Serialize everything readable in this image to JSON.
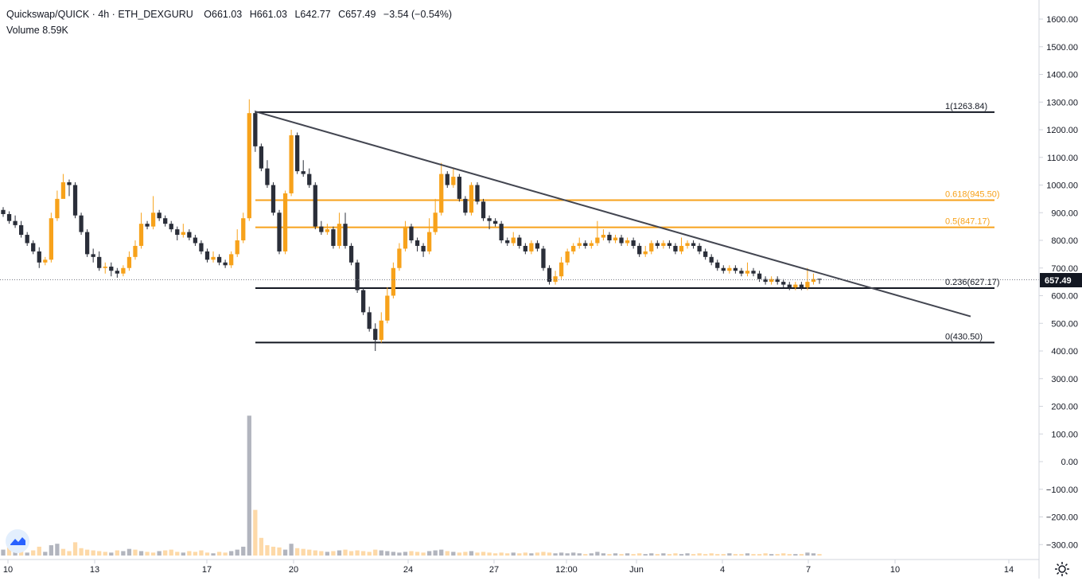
{
  "header": {
    "symbol": "Quickswap/QUICK · 4h · ETH_DEXGURU",
    "ohlc": {
      "open_label": "O",
      "open": "661.03",
      "high_label": "H",
      "high": "661.03",
      "low_label": "L",
      "low": "642.77",
      "close_label": "C",
      "close": "657.49",
      "change": "−3.54 (−0.54%)"
    },
    "volume_label": "Volume",
    "volume_value": "8.59K"
  },
  "price_tag": "657.49",
  "colors": {
    "up": "#f7a21b",
    "down": "#2a2e39",
    "fib_black": "#131722",
    "fib_orange": "#f7a21b",
    "trendline": "#434651",
    "volume_up": "#fdd9a8",
    "volume_down": "#b2b5be",
    "grid": "#e0e3eb"
  },
  "chart_data": {
    "type": "candlestick",
    "y_ticks": [
      "1600.00",
      "1500.00",
      "1400.00",
      "1300.00",
      "1200.00",
      "1100.00",
      "1000.00",
      "900.00",
      "800.00",
      "700.00",
      "600.00",
      "500.00",
      "400.00",
      "300.00",
      "200.00",
      "100.00",
      "0.00",
      "−100.00",
      "−200.00",
      "−300.00"
    ],
    "y_range": [
      -330,
      1650
    ],
    "x_ticks": [
      "10",
      "13",
      "17",
      "20",
      "24",
      "27",
      "12:00",
      "Jun",
      "4",
      "7",
      "10",
      "14"
    ],
    "last_price": 657.49,
    "fib_levels": [
      {
        "label": "1(1263.84)",
        "value": 1263.84,
        "color": "black"
      },
      {
        "label": "0.618(945.50)",
        "value": 945.5,
        "color": "orange"
      },
      {
        "label": "0.5(847.17)",
        "value": 847.17,
        "color": "orange"
      },
      {
        "label": "0.236(627.17)",
        "value": 627.17,
        "color": "black"
      },
      {
        "label": "0(430.50)",
        "value": 430.5,
        "color": "black"
      }
    ],
    "trendline": {
      "from": {
        "x": 322,
        "price": 1265
      },
      "to": {
        "x": 1220,
        "price": 525
      }
    },
    "candles": [
      [
        910,
        895,
        920,
        885
      ],
      [
        895,
        870,
        905,
        860
      ],
      [
        870,
        855,
        890,
        845
      ],
      [
        855,
        820,
        870,
        810
      ],
      [
        820,
        790,
        830,
        780
      ],
      [
        790,
        760,
        800,
        750
      ],
      [
        760,
        720,
        775,
        700
      ],
      [
        720,
        730,
        740,
        710
      ],
      [
        730,
        880,
        900,
        720
      ],
      [
        880,
        950,
        980,
        870
      ],
      [
        950,
        1010,
        1040,
        1000
      ],
      [
        1010,
        1000,
        1020,
        960
      ],
      [
        1000,
        890,
        1010,
        880
      ],
      [
        890,
        830,
        900,
        820
      ],
      [
        830,
        750,
        840,
        740
      ],
      [
        750,
        740,
        770,
        720
      ],
      [
        740,
        700,
        760,
        690
      ],
      [
        700,
        705,
        720,
        680
      ],
      [
        705,
        690,
        720,
        670
      ],
      [
        690,
        680,
        700,
        665
      ],
      [
        680,
        700,
        710,
        670
      ],
      [
        700,
        740,
        760,
        690
      ],
      [
        740,
        780,
        800,
        730
      ],
      [
        780,
        860,
        900,
        770
      ],
      [
        860,
        850,
        870,
        840
      ],
      [
        850,
        900,
        960,
        840
      ],
      [
        900,
        880,
        910,
        870
      ],
      [
        880,
        860,
        890,
        850
      ],
      [
        860,
        840,
        870,
        830
      ],
      [
        840,
        820,
        850,
        800
      ],
      [
        820,
        830,
        860,
        810
      ],
      [
        830,
        810,
        840,
        800
      ],
      [
        810,
        790,
        820,
        780
      ],
      [
        790,
        760,
        800,
        750
      ],
      [
        760,
        730,
        770,
        720
      ],
      [
        730,
        740,
        760,
        720
      ],
      [
        740,
        720,
        750,
        710
      ],
      [
        720,
        710,
        730,
        700
      ],
      [
        710,
        750,
        760,
        700
      ],
      [
        750,
        800,
        840,
        740
      ],
      [
        800,
        880,
        900,
        790
      ],
      [
        880,
        1260,
        1310,
        870
      ],
      [
        1260,
        1140,
        1270,
        1120
      ],
      [
        1140,
        1060,
        1150,
        1050
      ],
      [
        1060,
        1000,
        1090,
        990
      ],
      [
        1000,
        900,
        1010,
        890
      ],
      [
        900,
        760,
        910,
        750
      ],
      [
        760,
        970,
        980,
        750
      ],
      [
        970,
        1180,
        1200,
        960
      ],
      [
        1180,
        1050,
        1190,
        1040
      ],
      [
        1050,
        1040,
        1090,
        1030
      ],
      [
        1040,
        1000,
        1060,
        990
      ],
      [
        1000,
        850,
        1010,
        840
      ],
      [
        850,
        830,
        870,
        820
      ],
      [
        830,
        840,
        860,
        820
      ],
      [
        840,
        780,
        850,
        770
      ],
      [
        780,
        860,
        900,
        770
      ],
      [
        860,
        780,
        900,
        770
      ],
      [
        780,
        720,
        790,
        710
      ],
      [
        720,
        620,
        730,
        610
      ],
      [
        620,
        540,
        630,
        530
      ],
      [
        540,
        480,
        560,
        470
      ],
      [
        480,
        440,
        500,
        400
      ],
      [
        440,
        510,
        540,
        430
      ],
      [
        510,
        600,
        630,
        500
      ],
      [
        600,
        700,
        720,
        590
      ],
      [
        700,
        770,
        790,
        690
      ],
      [
        770,
        850,
        870,
        760
      ],
      [
        850,
        800,
        860,
        790
      ],
      [
        800,
        780,
        810,
        760
      ],
      [
        780,
        760,
        790,
        740
      ],
      [
        760,
        830,
        880,
        750
      ],
      [
        830,
        900,
        950,
        820
      ],
      [
        900,
        1040,
        1080,
        890
      ],
      [
        1040,
        1000,
        1050,
        990
      ],
      [
        1000,
        1030,
        1060,
        990
      ],
      [
        1030,
        950,
        1040,
        940
      ],
      [
        950,
        900,
        960,
        890
      ],
      [
        900,
        1000,
        1010,
        890
      ],
      [
        1000,
        940,
        1010,
        930
      ],
      [
        940,
        880,
        950,
        870
      ],
      [
        880,
        870,
        890,
        840
      ],
      [
        870,
        860,
        880,
        850
      ],
      [
        860,
        800,
        870,
        790
      ],
      [
        800,
        790,
        810,
        780
      ],
      [
        790,
        810,
        830,
        780
      ],
      [
        810,
        780,
        820,
        770
      ],
      [
        780,
        760,
        790,
        750
      ],
      [
        760,
        790,
        800,
        750
      ],
      [
        790,
        770,
        800,
        760
      ],
      [
        770,
        700,
        780,
        690
      ],
      [
        700,
        650,
        710,
        640
      ],
      [
        650,
        670,
        690,
        640
      ],
      [
        670,
        720,
        740,
        660
      ],
      [
        720,
        760,
        770,
        710
      ],
      [
        760,
        780,
        790,
        750
      ],
      [
        780,
        790,
        810,
        770
      ],
      [
        790,
        780,
        800,
        770
      ],
      [
        780,
        790,
        800,
        770
      ],
      [
        790,
        810,
        870,
        780
      ],
      [
        810,
        820,
        840,
        800
      ],
      [
        820,
        800,
        830,
        790
      ],
      [
        800,
        810,
        820,
        790
      ],
      [
        810,
        790,
        820,
        780
      ],
      [
        790,
        800,
        810,
        780
      ],
      [
        800,
        780,
        810,
        770
      ],
      [
        780,
        750,
        790,
        740
      ],
      [
        750,
        760,
        780,
        740
      ],
      [
        760,
        790,
        800,
        750
      ],
      [
        790,
        780,
        800,
        770
      ],
      [
        780,
        790,
        800,
        770
      ],
      [
        790,
        780,
        800,
        770
      ],
      [
        780,
        760,
        790,
        750
      ],
      [
        760,
        780,
        810,
        750
      ],
      [
        780,
        790,
        800,
        770
      ],
      [
        790,
        780,
        800,
        770
      ],
      [
        780,
        760,
        790,
        750
      ],
      [
        760,
        740,
        770,
        730
      ],
      [
        740,
        720,
        750,
        710
      ],
      [
        720,
        700,
        730,
        690
      ],
      [
        700,
        690,
        710,
        680
      ],
      [
        690,
        700,
        710,
        680
      ],
      [
        700,
        690,
        710,
        680
      ],
      [
        690,
        680,
        700,
        670
      ],
      [
        680,
        690,
        720,
        670
      ],
      [
        690,
        680,
        700,
        670
      ],
      [
        680,
        660,
        690,
        650
      ],
      [
        660,
        650,
        670,
        640
      ],
      [
        650,
        660,
        670,
        640
      ],
      [
        660,
        650,
        670,
        640
      ],
      [
        650,
        640,
        660,
        630
      ],
      [
        640,
        630,
        650,
        620
      ],
      [
        630,
        640,
        650,
        620
      ],
      [
        640,
        630,
        650,
        620
      ],
      [
        630,
        650,
        700,
        620
      ],
      [
        650,
        660,
        680,
        640
      ],
      [
        661.03,
        657.49,
        661.03,
        642.77
      ]
    ],
    "volumes": [
      [
        40,
        0
      ],
      [
        55,
        1
      ],
      [
        30,
        0
      ],
      [
        45,
        1
      ],
      [
        20,
        0
      ],
      [
        35,
        1
      ],
      [
        60,
        1
      ],
      [
        25,
        0
      ],
      [
        70,
        0
      ],
      [
        80,
        0
      ],
      [
        45,
        1
      ],
      [
        30,
        1
      ],
      [
        90,
        1
      ],
      [
        50,
        1
      ],
      [
        40,
        1
      ],
      [
        35,
        1
      ],
      [
        30,
        1
      ],
      [
        25,
        1
      ],
      [
        20,
        0
      ],
      [
        35,
        1
      ],
      [
        30,
        0
      ],
      [
        45,
        0
      ],
      [
        40,
        1
      ],
      [
        30,
        0
      ],
      [
        25,
        1
      ],
      [
        20,
        1
      ],
      [
        30,
        0
      ],
      [
        35,
        1
      ],
      [
        40,
        1
      ],
      [
        25,
        1
      ],
      [
        20,
        0
      ],
      [
        30,
        1
      ],
      [
        25,
        1
      ],
      [
        35,
        1
      ],
      [
        20,
        1
      ],
      [
        15,
        0
      ],
      [
        25,
        1
      ],
      [
        20,
        1
      ],
      [
        30,
        0
      ],
      [
        40,
        0
      ],
      [
        60,
        0
      ],
      [
        950,
        0
      ],
      [
        310,
        1
      ],
      [
        120,
        1
      ],
      [
        70,
        1
      ],
      [
        60,
        1
      ],
      [
        55,
        1
      ],
      [
        40,
        0
      ],
      [
        80,
        0
      ],
      [
        50,
        1
      ],
      [
        45,
        1
      ],
      [
        40,
        1
      ],
      [
        35,
        1
      ],
      [
        30,
        1
      ],
      [
        25,
        0
      ],
      [
        30,
        1
      ],
      [
        35,
        0
      ],
      [
        40,
        1
      ],
      [
        30,
        1
      ],
      [
        35,
        1
      ],
      [
        30,
        1
      ],
      [
        25,
        1
      ],
      [
        40,
        1
      ],
      [
        35,
        0
      ],
      [
        30,
        0
      ],
      [
        25,
        0
      ],
      [
        20,
        0
      ],
      [
        25,
        0
      ],
      [
        30,
        1
      ],
      [
        25,
        1
      ],
      [
        20,
        1
      ],
      [
        30,
        0
      ],
      [
        35,
        0
      ],
      [
        40,
        0
      ],
      [
        30,
        1
      ],
      [
        25,
        0
      ],
      [
        20,
        1
      ],
      [
        25,
        1
      ],
      [
        30,
        0
      ],
      [
        20,
        1
      ],
      [
        25,
        1
      ],
      [
        20,
        1
      ],
      [
        15,
        1
      ],
      [
        20,
        1
      ],
      [
        15,
        1
      ],
      [
        20,
        0
      ],
      [
        15,
        1
      ],
      [
        20,
        1
      ],
      [
        15,
        0
      ],
      [
        20,
        1
      ],
      [
        25,
        1
      ],
      [
        20,
        1
      ],
      [
        15,
        0
      ],
      [
        20,
        0
      ],
      [
        15,
        0
      ],
      [
        20,
        0
      ],
      [
        15,
        0
      ],
      [
        10,
        1
      ],
      [
        15,
        0
      ],
      [
        25,
        0
      ],
      [
        15,
        0
      ],
      [
        10,
        1
      ],
      [
        15,
        0
      ],
      [
        10,
        1
      ],
      [
        15,
        0
      ],
      [
        10,
        1
      ],
      [
        15,
        1
      ],
      [
        10,
        0
      ],
      [
        15,
        0
      ],
      [
        10,
        1
      ],
      [
        15,
        0
      ],
      [
        10,
        1
      ],
      [
        15,
        1
      ],
      [
        10,
        0
      ],
      [
        15,
        0
      ],
      [
        10,
        1
      ],
      [
        15,
        1
      ],
      [
        10,
        1
      ],
      [
        15,
        1
      ],
      [
        10,
        1
      ],
      [
        10,
        1
      ],
      [
        15,
        0
      ],
      [
        10,
        1
      ],
      [
        10,
        1
      ],
      [
        15,
        0
      ],
      [
        10,
        1
      ],
      [
        10,
        1
      ],
      [
        15,
        1
      ],
      [
        10,
        0
      ],
      [
        10,
        1
      ],
      [
        15,
        1
      ],
      [
        10,
        1
      ],
      [
        10,
        0
      ],
      [
        10,
        1
      ],
      [
        20,
        0
      ],
      [
        15,
        0
      ],
      [
        10,
        1
      ]
    ]
  }
}
